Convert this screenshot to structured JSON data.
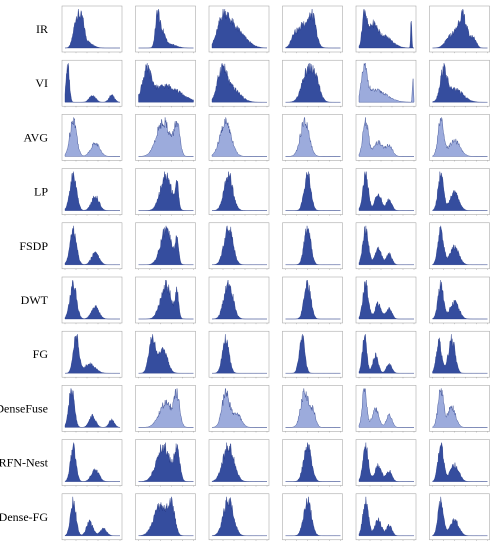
{
  "figure": {
    "row_labels": [
      "IR",
      "VI",
      "AVG",
      "LP",
      "FSDP",
      "DWT",
      "FG",
      "DenseFuse",
      "RFN-Nest",
      "Dense-FG"
    ],
    "colors": {
      "fill_dark": "#1f3a93",
      "fill_light": "#7b8fd0",
      "stroke": "#1a2f80",
      "frame": "#999999"
    }
  },
  "chart_data": {
    "type": "area",
    "xlim": [
      0,
      255
    ],
    "grid": false,
    "columns": 6,
    "rows": [
      {
        "label": "IR",
        "panels": [
          {
            "peaks": [
              [
                0.22,
                0.06,
                1.0
              ],
              [
                0.32,
                0.04,
                0.55
              ],
              [
                0.4,
                0.1,
                0.2
              ]
            ],
            "light": false
          },
          {
            "peaks": [
              [
                0.35,
                0.04,
                1.0
              ],
              [
                0.45,
                0.04,
                0.35
              ],
              [
                0.55,
                0.12,
                0.12
              ]
            ],
            "light": false
          },
          {
            "peaks": [
              [
                0.2,
                0.1,
                0.85
              ],
              [
                0.35,
                0.15,
                0.6
              ],
              [
                0.55,
                0.15,
                0.25
              ]
            ],
            "light": false
          },
          {
            "peaks": [
              [
                0.35,
                0.12,
                0.8
              ],
              [
                0.5,
                0.06,
                0.65
              ],
              [
                0.15,
                0.05,
                0.3
              ]
            ],
            "light": false
          },
          {
            "peaks": [
              [
                0.1,
                0.04,
                0.9
              ],
              [
                0.25,
                0.08,
                0.5
              ],
              [
                0.45,
                0.15,
                0.3
              ],
              [
                0.95,
                0.01,
                0.8
              ]
            ],
            "light": false
          },
          {
            "peaks": [
              [
                0.55,
                0.08,
                1.0
              ],
              [
                0.35,
                0.1,
                0.4
              ],
              [
                0.75,
                0.05,
                0.3
              ]
            ],
            "light": false
          }
        ]
      },
      {
        "label": "VI",
        "panels": [
          {
            "peaks": [
              [
                0.05,
                0.03,
                1.0
              ],
              [
                0.5,
                0.06,
                0.18
              ],
              [
                0.85,
                0.05,
                0.2
              ]
            ],
            "light": false
          },
          {
            "peaks": [
              [
                0.15,
                0.08,
                0.2
              ],
              [
                0.5,
                0.25,
                0.12
              ]
            ],
            "light": false
          },
          {
            "peaks": [
              [
                0.18,
                0.08,
                1.0
              ],
              [
                0.35,
                0.15,
                0.5
              ]
            ],
            "light": false
          },
          {
            "peaks": [
              [
                0.4,
                0.1,
                1.0
              ],
              [
                0.55,
                0.08,
                0.6
              ]
            ],
            "light": false
          },
          {
            "peaks": [
              [
                0.1,
                0.05,
                0.6
              ],
              [
                0.3,
                0.2,
                0.25
              ],
              [
                0.98,
                0.01,
                0.5
              ]
            ],
            "light": true
          },
          {
            "peaks": [
              [
                0.2,
                0.06,
                1.0
              ],
              [
                0.4,
                0.15,
                0.45
              ]
            ],
            "light": false
          }
        ]
      },
      {
        "label": "AVG",
        "panels": [
          {
            "peaks": [
              [
                0.15,
                0.06,
                1.0
              ],
              [
                0.55,
                0.08,
                0.35
              ]
            ],
            "light": true
          },
          {
            "peaks": [
              [
                0.45,
                0.12,
                0.8
              ],
              [
                0.7,
                0.05,
                0.7
              ]
            ],
            "light": true
          },
          {
            "peaks": [
              [
                0.25,
                0.1,
                1.0
              ]
            ],
            "light": true
          },
          {
            "peaks": [
              [
                0.35,
                0.08,
                1.0
              ]
            ],
            "light": true
          },
          {
            "peaks": [
              [
                0.12,
                0.05,
                1.0
              ],
              [
                0.35,
                0.08,
                0.4
              ],
              [
                0.55,
                0.06,
                0.3
              ]
            ],
            "light": true
          },
          {
            "peaks": [
              [
                0.15,
                0.05,
                1.0
              ],
              [
                0.4,
                0.1,
                0.45
              ]
            ],
            "light": true
          }
        ]
      },
      {
        "label": "LP",
        "panels": [
          {
            "peaks": [
              [
                0.15,
                0.06,
                1.0
              ],
              [
                0.55,
                0.07,
                0.4
              ]
            ],
            "light": false
          },
          {
            "peaks": [
              [
                0.5,
                0.1,
                1.0
              ],
              [
                0.7,
                0.03,
                0.7
              ]
            ],
            "light": false
          },
          {
            "peaks": [
              [
                0.3,
                0.08,
                1.0
              ]
            ],
            "light": false
          },
          {
            "peaks": [
              [
                0.4,
                0.06,
                1.0
              ]
            ],
            "light": false
          },
          {
            "peaks": [
              [
                0.12,
                0.05,
                1.0
              ],
              [
                0.35,
                0.06,
                0.45
              ],
              [
                0.55,
                0.05,
                0.3
              ]
            ],
            "light": false
          },
          {
            "peaks": [
              [
                0.15,
                0.05,
                1.0
              ],
              [
                0.4,
                0.08,
                0.5
              ]
            ],
            "light": false
          }
        ]
      },
      {
        "label": "FSDP",
        "panels": [
          {
            "peaks": [
              [
                0.15,
                0.06,
                1.0
              ],
              [
                0.55,
                0.07,
                0.35
              ]
            ],
            "light": false
          },
          {
            "peaks": [
              [
                0.5,
                0.1,
                1.0
              ],
              [
                0.7,
                0.03,
                0.7
              ]
            ],
            "light": false
          },
          {
            "peaks": [
              [
                0.3,
                0.08,
                1.0
              ]
            ],
            "light": false
          },
          {
            "peaks": [
              [
                0.4,
                0.06,
                1.0
              ]
            ],
            "light": false
          },
          {
            "peaks": [
              [
                0.12,
                0.05,
                1.0
              ],
              [
                0.35,
                0.06,
                0.45
              ],
              [
                0.55,
                0.05,
                0.3
              ]
            ],
            "light": false
          },
          {
            "peaks": [
              [
                0.15,
                0.05,
                1.0
              ],
              [
                0.4,
                0.08,
                0.5
              ]
            ],
            "light": false
          }
        ]
      },
      {
        "label": "DWT",
        "panels": [
          {
            "peaks": [
              [
                0.15,
                0.06,
                1.0
              ],
              [
                0.55,
                0.07,
                0.35
              ]
            ],
            "light": false
          },
          {
            "peaks": [
              [
                0.5,
                0.1,
                1.0
              ],
              [
                0.7,
                0.03,
                0.7
              ]
            ],
            "light": false
          },
          {
            "peaks": [
              [
                0.3,
                0.08,
                1.0
              ]
            ],
            "light": false
          },
          {
            "peaks": [
              [
                0.4,
                0.06,
                1.0
              ]
            ],
            "light": false
          },
          {
            "peaks": [
              [
                0.12,
                0.05,
                1.0
              ],
              [
                0.35,
                0.06,
                0.45
              ],
              [
                0.55,
                0.05,
                0.3
              ]
            ],
            "light": false
          },
          {
            "peaks": [
              [
                0.15,
                0.05,
                1.0
              ],
              [
                0.4,
                0.08,
                0.5
              ]
            ],
            "light": false
          }
        ]
      },
      {
        "label": "FG",
        "panels": [
          {
            "peaks": [
              [
                0.2,
                0.05,
                1.0
              ],
              [
                0.45,
                0.1,
                0.25
              ]
            ],
            "light": false
          },
          {
            "peaks": [
              [
                0.25,
                0.06,
                0.9
              ],
              [
                0.45,
                0.08,
                0.6
              ]
            ],
            "light": false
          },
          {
            "peaks": [
              [
                0.25,
                0.06,
                1.0
              ]
            ],
            "light": false
          },
          {
            "peaks": [
              [
                0.3,
                0.05,
                1.0
              ]
            ],
            "light": false
          },
          {
            "peaks": [
              [
                0.1,
                0.04,
                1.0
              ],
              [
                0.3,
                0.05,
                0.5
              ],
              [
                0.55,
                0.05,
                0.25
              ]
            ],
            "light": false
          },
          {
            "peaks": [
              [
                0.12,
                0.05,
                0.8
              ],
              [
                0.35,
                0.06,
                0.9
              ]
            ],
            "light": false
          }
        ]
      },
      {
        "label": "DenseFuse",
        "panels": [
          {
            "peaks": [
              [
                0.12,
                0.05,
                1.0
              ],
              [
                0.5,
                0.06,
                0.3
              ],
              [
                0.85,
                0.05,
                0.2
              ]
            ],
            "light": false
          },
          {
            "peaks": [
              [
                0.5,
                0.12,
                0.7
              ],
              [
                0.7,
                0.05,
                0.8
              ]
            ],
            "light": true
          },
          {
            "peaks": [
              [
                0.25,
                0.07,
                1.0
              ],
              [
                0.45,
                0.08,
                0.4
              ]
            ],
            "light": true
          },
          {
            "peaks": [
              [
                0.35,
                0.07,
                1.0
              ],
              [
                0.5,
                0.05,
                0.4
              ]
            ],
            "light": true
          },
          {
            "peaks": [
              [
                0.1,
                0.04,
                1.0
              ],
              [
                0.3,
                0.06,
                0.45
              ],
              [
                0.55,
                0.05,
                0.3
              ]
            ],
            "light": true
          },
          {
            "peaks": [
              [
                0.15,
                0.05,
                1.0
              ],
              [
                0.35,
                0.07,
                0.55
              ]
            ],
            "light": true
          }
        ]
      },
      {
        "label": "RFN-Nest",
        "panels": [
          {
            "peaks": [
              [
                0.15,
                0.05,
                1.0
              ],
              [
                0.55,
                0.07,
                0.35
              ]
            ],
            "light": false
          },
          {
            "peaks": [
              [
                0.45,
                0.12,
                0.85
              ],
              [
                0.7,
                0.05,
                0.7
              ]
            ],
            "light": false
          },
          {
            "peaks": [
              [
                0.3,
                0.1,
                1.0
              ]
            ],
            "light": false
          },
          {
            "peaks": [
              [
                0.4,
                0.07,
                1.0
              ]
            ],
            "light": false
          },
          {
            "peaks": [
              [
                0.12,
                0.05,
                1.0
              ],
              [
                0.35,
                0.06,
                0.45
              ],
              [
                0.55,
                0.05,
                0.3
              ]
            ],
            "light": false
          },
          {
            "peaks": [
              [
                0.15,
                0.05,
                1.0
              ],
              [
                0.4,
                0.08,
                0.45
              ]
            ],
            "light": false
          }
        ]
      },
      {
        "label": "Dense-FG",
        "panels": [
          {
            "peaks": [
              [
                0.15,
                0.05,
                1.0
              ],
              [
                0.45,
                0.06,
                0.4
              ],
              [
                0.7,
                0.06,
                0.2
              ]
            ],
            "light": false
          },
          {
            "peaks": [
              [
                0.4,
                0.12,
                0.8
              ],
              [
                0.6,
                0.06,
                0.75
              ]
            ],
            "light": false
          },
          {
            "peaks": [
              [
                0.3,
                0.09,
                1.0
              ]
            ],
            "light": false
          },
          {
            "peaks": [
              [
                0.4,
                0.07,
                1.0
              ]
            ],
            "light": false
          },
          {
            "peaks": [
              [
                0.12,
                0.05,
                1.0
              ],
              [
                0.35,
                0.06,
                0.45
              ],
              [
                0.55,
                0.05,
                0.3
              ]
            ],
            "light": false
          },
          {
            "peaks": [
              [
                0.15,
                0.05,
                1.0
              ],
              [
                0.4,
                0.08,
                0.45
              ]
            ],
            "light": false
          }
        ]
      }
    ]
  }
}
